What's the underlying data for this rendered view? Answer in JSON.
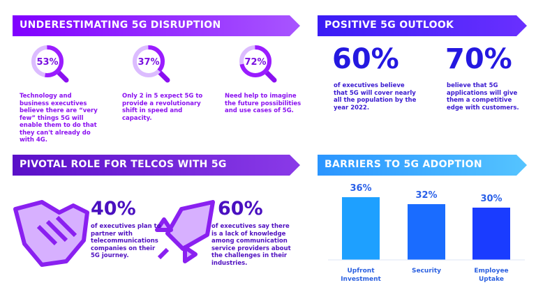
{
  "disruption": {
    "title": "UNDERESTIMATING 5G DISRUPTION",
    "stats": [
      {
        "value": 53,
        "value_label": "53%",
        "text": "Technology and business executives believe there are “very few” things 5G will enable them to do that they can't already do with 4G."
      },
      {
        "value": 37,
        "value_label": "37%",
        "text": "Only 2 in 5 expect 5G to provide a revolutionary shift in speed and capacity."
      },
      {
        "value": 72,
        "value_label": "72%",
        "text": "Need help to imagine the future possibilities and use cases of 5G."
      }
    ]
  },
  "outlook": {
    "title": "POSITIVE 5G OUTLOOK",
    "stats": [
      {
        "figure": "60%",
        "text": "of executives believe that 5G will cover nearly all the population by the year 2022."
      },
      {
        "figure": "70%",
        "text": "believe that 5G applications will give them a competitive edge with customers."
      }
    ]
  },
  "telcos": {
    "title": "PIVOTAL ROLE FOR TELCOS WITH 5G",
    "stats": [
      {
        "figure": "40%",
        "text": "of executives plan to partner with telecommunications companies on their 5G journey."
      },
      {
        "figure": "60%",
        "text": "of executives say there is a lack of knowledge among communication service providers about the challenges in their industries."
      }
    ]
  },
  "barriers": {
    "title": "BARRIERS TO 5G ADOPTION",
    "type": "bar",
    "categories": [
      "Upfront Investment",
      "Security",
      "Employee Uptake"
    ],
    "values": [
      36,
      32,
      30
    ],
    "value_labels": [
      "36%",
      "32%",
      "30%"
    ],
    "colors": [
      "#1ea0ff",
      "#1a6cff",
      "#1a3cff"
    ]
  }
}
